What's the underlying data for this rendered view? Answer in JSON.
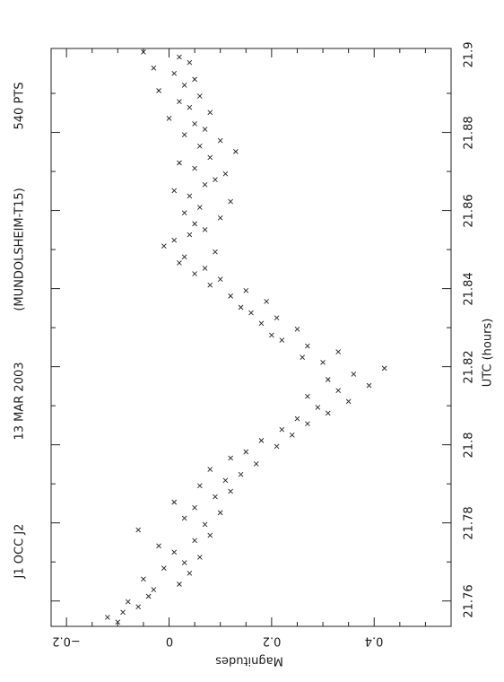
{
  "chart_data": {
    "type": "scatter",
    "title_items": [
      "J1 OCC J2",
      "13 MAR 2003",
      "(MUNDOLSHEIM-T15)",
      "540 PTS"
    ],
    "xlabel": "UTC (hours)",
    "ylabel": "Magnitudes",
    "xlim": [
      21.7535,
      21.9015
    ],
    "ylim": [
      -0.23,
      0.55
    ],
    "y_inverted": true,
    "x_ticks": [
      21.76,
      21.78,
      21.8,
      21.82,
      21.84,
      21.86,
      21.88,
      21.9
    ],
    "x_tick_labels": [
      "21.76",
      "21.78",
      "21.8",
      "21.82",
      "21.84",
      "21.86",
      "21.88",
      "21.9"
    ],
    "y_ticks": [
      -0.2,
      0,
      0.2,
      0.4
    ],
    "y_tick_labels": [
      "−0.2",
      "0",
      "0.2",
      "0.4"
    ],
    "marker": "x",
    "color": "#222222",
    "grid": false,
    "series": [
      {
        "x": [
          21.7546,
          21.7558,
          21.7571,
          21.7585,
          21.7598,
          21.7612,
          21.7629,
          21.7643,
          21.7656,
          21.7671,
          21.7684,
          21.7698,
          21.7712,
          21.7725,
          21.7741,
          21.7755,
          21.7768,
          21.7782,
          21.7796,
          21.7812,
          21.7826,
          21.7839,
          21.7853,
          21.7867,
          21.7881,
          21.7895,
          21.7909,
          21.7924,
          21.7937,
          21.7951,
          21.7966,
          21.7982,
          21.7996,
          21.8011,
          21.8025,
          21.8039,
          21.8054,
          21.8067,
          21.8081,
          21.8096,
          21.8111,
          21.8124,
          21.8139,
          21.8152,
          21.8167,
          21.8181,
          21.8196,
          21.8211,
          21.8224,
          21.8238,
          21.8253,
          21.8268,
          21.8281,
          21.8296,
          21.8311,
          21.8325,
          21.8338,
          21.8352,
          21.8367,
          21.8381,
          21.8395,
          21.8409,
          21.8424,
          21.8438,
          21.8452,
          21.8466,
          21.8481,
          21.8494,
          21.8509,
          21.8524,
          21.8538,
          21.8551,
          21.8566,
          21.8581,
          21.8594,
          21.8608,
          21.8623,
          21.8637,
          21.8651,
          21.8666,
          21.8679,
          21.8694,
          21.8708,
          21.8722,
          21.8736,
          21.8751,
          21.8765,
          21.8779,
          21.8794,
          21.8808,
          21.8822,
          21.8836,
          21.8851,
          21.8864,
          21.8879,
          21.8893,
          21.8907,
          21.8921,
          21.8936,
          21.8951,
          21.8965,
          21.8979,
          21.8993,
          21.9006
        ],
        "y": [
          -0.1,
          -0.12,
          -0.09,
          -0.06,
          -0.08,
          -0.04,
          -0.03,
          0.02,
          -0.05,
          0.04,
          -0.01,
          0.03,
          0.06,
          0.01,
          -0.02,
          0.05,
          0.08,
          -0.06,
          0.07,
          0.03,
          0.1,
          0.05,
          0.01,
          0.09,
          0.12,
          0.06,
          0.11,
          0.14,
          0.08,
          0.17,
          0.12,
          0.15,
          0.21,
          0.18,
          0.24,
          0.22,
          0.27,
          0.25,
          0.31,
          0.29,
          0.35,
          0.27,
          0.33,
          0.39,
          0.31,
          0.36,
          0.42,
          0.3,
          0.26,
          0.33,
          0.27,
          0.22,
          0.2,
          0.25,
          0.18,
          0.21,
          0.16,
          0.14,
          0.19,
          0.12,
          0.15,
          0.08,
          0.1,
          0.05,
          0.07,
          0.02,
          0.03,
          0.09,
          -0.01,
          0.01,
          0.04,
          0.07,
          0.05,
          0.1,
          0.03,
          0.06,
          0.12,
          0.04,
          0.01,
          0.07,
          0.09,
          0.11,
          0.05,
          0.02,
          0.08,
          0.13,
          0.06,
          0.1,
          0.03,
          0.07,
          0.05,
          0.0,
          0.08,
          0.04,
          0.02,
          0.06,
          -0.02,
          0.03,
          0.05,
          0.01,
          -0.03,
          0.04,
          0.02,
          -0.05
        ]
      }
    ]
  }
}
